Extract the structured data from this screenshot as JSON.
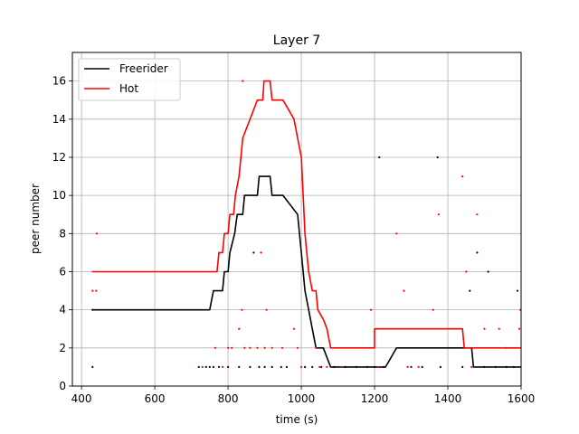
{
  "chart_data": {
    "type": "line",
    "title": "Layer 7",
    "xlabel": "time (s)",
    "ylabel": "peer number",
    "xlim": [
      375,
      1600
    ],
    "ylim": [
      0,
      17.5
    ],
    "xticks": [
      400,
      600,
      800,
      1000,
      1200,
      1400,
      1600
    ],
    "yticks": [
      0,
      2,
      4,
      6,
      8,
      10,
      12,
      14,
      16
    ],
    "grid": true,
    "legend_position": "upper-left",
    "series": [
      {
        "name": "Freerider",
        "color": "#000000",
        "points": [
          [
            428,
            4
          ],
          [
            750,
            4
          ],
          [
            760,
            5
          ],
          [
            785,
            5
          ],
          [
            790,
            6
          ],
          [
            800,
            6
          ],
          [
            805,
            7
          ],
          [
            818,
            8
          ],
          [
            825,
            9
          ],
          [
            840,
            9
          ],
          [
            845,
            10
          ],
          [
            880,
            10
          ],
          [
            885,
            11
          ],
          [
            900,
            11
          ],
          [
            905,
            11
          ],
          [
            915,
            11
          ],
          [
            920,
            10
          ],
          [
            950,
            10
          ],
          [
            990,
            9
          ],
          [
            995,
            8
          ],
          [
            1000,
            7
          ],
          [
            1005,
            6
          ],
          [
            1010,
            5
          ],
          [
            1020,
            4
          ],
          [
            1030,
            3
          ],
          [
            1040,
            2
          ],
          [
            1060,
            2
          ],
          [
            1070,
            1.5
          ],
          [
            1080,
            1
          ],
          [
            1230,
            1
          ],
          [
            1260,
            2
          ],
          [
            1465,
            2
          ],
          [
            1470,
            1
          ],
          [
            1600,
            1
          ]
        ]
      },
      {
        "name": "Hot",
        "color": "#ff0000",
        "points": [
          [
            428,
            6
          ],
          [
            770,
            6
          ],
          [
            775,
            7
          ],
          [
            785,
            7
          ],
          [
            790,
            8
          ],
          [
            800,
            8
          ],
          [
            805,
            9
          ],
          [
            815,
            9
          ],
          [
            820,
            10
          ],
          [
            830,
            11
          ],
          [
            835,
            12
          ],
          [
            840,
            13
          ],
          [
            850,
            13.5
          ],
          [
            860,
            14
          ],
          [
            870,
            14.5
          ],
          [
            880,
            15
          ],
          [
            895,
            15
          ],
          [
            898,
            16
          ],
          [
            915,
            16
          ],
          [
            920,
            15
          ],
          [
            950,
            15
          ],
          [
            980,
            14
          ],
          [
            990,
            13
          ],
          [
            1000,
            12
          ],
          [
            1005,
            10
          ],
          [
            1010,
            8
          ],
          [
            1015,
            7
          ],
          [
            1020,
            6
          ],
          [
            1030,
            5
          ],
          [
            1040,
            5
          ],
          [
            1045,
            4
          ],
          [
            1060,
            3.5
          ],
          [
            1070,
            3
          ],
          [
            1080,
            2
          ],
          [
            1200,
            2
          ],
          [
            1200,
            3
          ],
          [
            1440,
            3
          ],
          [
            1445,
            2
          ],
          [
            1600,
            2
          ]
        ]
      }
    ],
    "scatter": [
      {
        "name": "freerider-samples",
        "color": "#000000",
        "points": [
          [
            430,
            4
          ],
          [
            430,
            1
          ],
          [
            720,
            1
          ],
          [
            740,
            1
          ],
          [
            750,
            1
          ],
          [
            760,
            1
          ],
          [
            775,
            1
          ],
          [
            800,
            1
          ],
          [
            830,
            1
          ],
          [
            860,
            1
          ],
          [
            870,
            7
          ],
          [
            885,
            1
          ],
          [
            900,
            1
          ],
          [
            920,
            1
          ],
          [
            945,
            1
          ],
          [
            960,
            1
          ],
          [
            1010,
            1
          ],
          [
            1030,
            1
          ],
          [
            1055,
            1
          ],
          [
            1090,
            1
          ],
          [
            1120,
            1
          ],
          [
            1150,
            1
          ],
          [
            1180,
            1
          ],
          [
            1200,
            1
          ],
          [
            1225,
            1
          ],
          [
            1300,
            1
          ],
          [
            1330,
            1
          ],
          [
            1380,
            1
          ],
          [
            1440,
            1
          ],
          [
            1460,
            5
          ],
          [
            1480,
            7
          ],
          [
            1500,
            1
          ],
          [
            1510,
            6
          ],
          [
            1530,
            1
          ],
          [
            1560,
            1
          ],
          [
            1580,
            1
          ],
          [
            1590,
            5
          ],
          [
            1213,
            12
          ],
          [
            1372,
            12
          ]
        ]
      },
      {
        "name": "hot-samples",
        "color": "#ff0000",
        "points": [
          [
            430,
            5
          ],
          [
            440,
            5
          ],
          [
            442,
            8
          ],
          [
            730,
            1
          ],
          [
            765,
            2
          ],
          [
            785,
            1
          ],
          [
            800,
            2
          ],
          [
            810,
            2
          ],
          [
            830,
            3
          ],
          [
            838,
            4
          ],
          [
            840,
            16
          ],
          [
            845,
            2
          ],
          [
            860,
            2
          ],
          [
            880,
            2
          ],
          [
            890,
            7
          ],
          [
            900,
            2
          ],
          [
            905,
            4
          ],
          [
            920,
            2
          ],
          [
            948,
            2
          ],
          [
            980,
            3
          ],
          [
            990,
            2
          ],
          [
            1000,
            1
          ],
          [
            1040,
            2
          ],
          [
            1050,
            1
          ],
          [
            1070,
            1
          ],
          [
            1110,
            1
          ],
          [
            1190,
            4
          ],
          [
            1210,
            1
          ],
          [
            1260,
            8
          ],
          [
            1280,
            5
          ],
          [
            1290,
            1
          ],
          [
            1320,
            1
          ],
          [
            1360,
            4
          ],
          [
            1375,
            9
          ],
          [
            1440,
            11
          ],
          [
            1450,
            6
          ],
          [
            1465,
            1
          ],
          [
            1480,
            9
          ],
          [
            1500,
            3
          ],
          [
            1540,
            3
          ],
          [
            1560,
            2
          ],
          [
            1595,
            3
          ],
          [
            1598,
            4
          ]
        ]
      }
    ]
  }
}
